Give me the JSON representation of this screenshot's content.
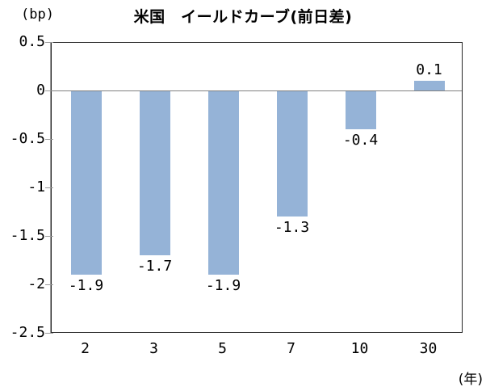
{
  "chart_data": {
    "type": "bar",
    "title": "米国　イールドカーブ(前日差)",
    "unit_left": "(bp)",
    "unit_bottom": "(年)",
    "categories": [
      "2",
      "3",
      "5",
      "7",
      "10",
      "30"
    ],
    "values": [
      -1.9,
      -1.7,
      -1.9,
      -1.3,
      -0.4,
      0.1
    ],
    "data_labels": [
      "-1.9",
      "-1.7",
      "-1.9",
      "-1.3",
      "-0.4",
      "0.1"
    ],
    "y_ticks": [
      "0.5",
      "0",
      "-0.5",
      "-1",
      "-1.5",
      "-2",
      "-2.5"
    ],
    "ylim": [
      -2.5,
      0.5
    ],
    "grid": false,
    "legend": false,
    "colors": {
      "bar": "#95b3d7",
      "zero_line": "#808080",
      "axis_line": "#9a9a9a",
      "frame": "#262626",
      "text": "#000000"
    }
  }
}
